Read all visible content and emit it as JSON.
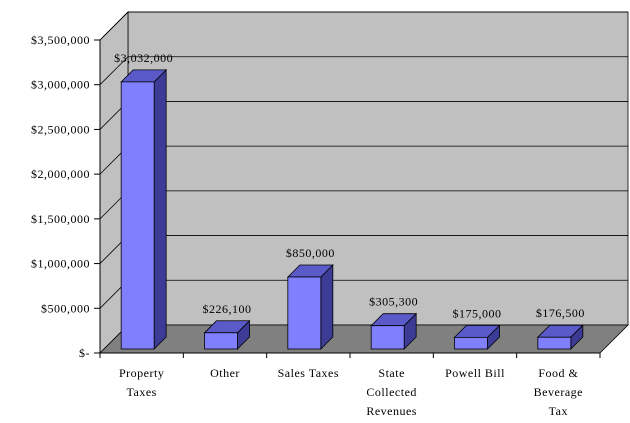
{
  "chart_data": {
    "type": "bar",
    "title": "",
    "xlabel": "",
    "ylabel": "",
    "categories": [
      [
        "Property",
        "Taxes"
      ],
      [
        "Other"
      ],
      [
        "Sales Taxes"
      ],
      [
        "State",
        "Collected",
        "Revenues"
      ],
      [
        "Powell Bill"
      ],
      [
        "Food &",
        "Beverage",
        "Tax"
      ]
    ],
    "values": [
      3032000,
      226100,
      850000,
      305300,
      175000,
      176500
    ],
    "data_labels": [
      "$3,032,000",
      "$226,100",
      "$850,000",
      "$305,300",
      "$175,000",
      "$176,500"
    ],
    "yticks": [
      0,
      500000,
      1000000,
      1500000,
      2000000,
      2500000,
      3000000,
      3500000
    ],
    "ytick_labels": [
      "$-",
      "$500,000",
      "$1,000,000",
      "$1,500,000",
      "$2,000,000",
      "$2,500,000",
      "$3,000,000",
      "$3,500,000"
    ],
    "ylim": [
      0,
      3500000
    ],
    "grid": true,
    "legend": "none",
    "style": "3d",
    "colors": {
      "bar_front": "#8080ff",
      "bar_side": "#3c3c96",
      "bar_top": "#5a5ac8",
      "wall": "#c0c0c0",
      "floor": "#808080",
      "grid": "#000000"
    }
  }
}
